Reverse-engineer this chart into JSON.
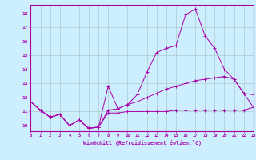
{
  "xlabel": "Windchill (Refroidissement éolien,°C)",
  "background_color": "#cceeff",
  "grid_color": "#aacccc",
  "line_color": "#aa00aa",
  "x_hours": [
    0,
    1,
    2,
    3,
    4,
    5,
    6,
    7,
    8,
    9,
    10,
    11,
    12,
    13,
    14,
    15,
    16,
    17,
    18,
    19,
    20,
    21,
    22,
    23
  ],
  "series1": [
    11.7,
    11.1,
    10.6,
    10.8,
    10.0,
    10.4,
    9.8,
    9.9,
    12.8,
    11.2,
    11.5,
    12.2,
    13.8,
    15.2,
    15.5,
    15.7,
    17.9,
    18.3,
    16.4,
    15.5,
    14.0,
    13.3,
    12.3,
    12.2
  ],
  "series2": [
    11.7,
    11.1,
    10.6,
    10.8,
    10.0,
    10.4,
    9.8,
    9.9,
    11.1,
    11.2,
    11.5,
    11.7,
    12.0,
    12.3,
    12.6,
    12.8,
    13.0,
    13.2,
    13.3,
    13.4,
    13.5,
    13.3,
    12.3,
    11.3
  ],
  "series3": [
    11.7,
    11.1,
    10.6,
    10.8,
    10.0,
    10.4,
    9.8,
    9.9,
    10.9,
    10.9,
    11.0,
    11.0,
    11.0,
    11.0,
    11.0,
    11.1,
    11.1,
    11.1,
    11.1,
    11.1,
    11.1,
    11.1,
    11.1,
    11.3
  ],
  "ylim": [
    9.6,
    18.6
  ],
  "xlim": [
    0,
    23
  ],
  "yticks": [
    10,
    11,
    12,
    13,
    14,
    15,
    16,
    17,
    18
  ],
  "xticks": [
    0,
    1,
    2,
    3,
    4,
    5,
    6,
    7,
    8,
    9,
    10,
    11,
    12,
    13,
    14,
    15,
    16,
    17,
    18,
    19,
    20,
    21,
    22,
    23
  ]
}
